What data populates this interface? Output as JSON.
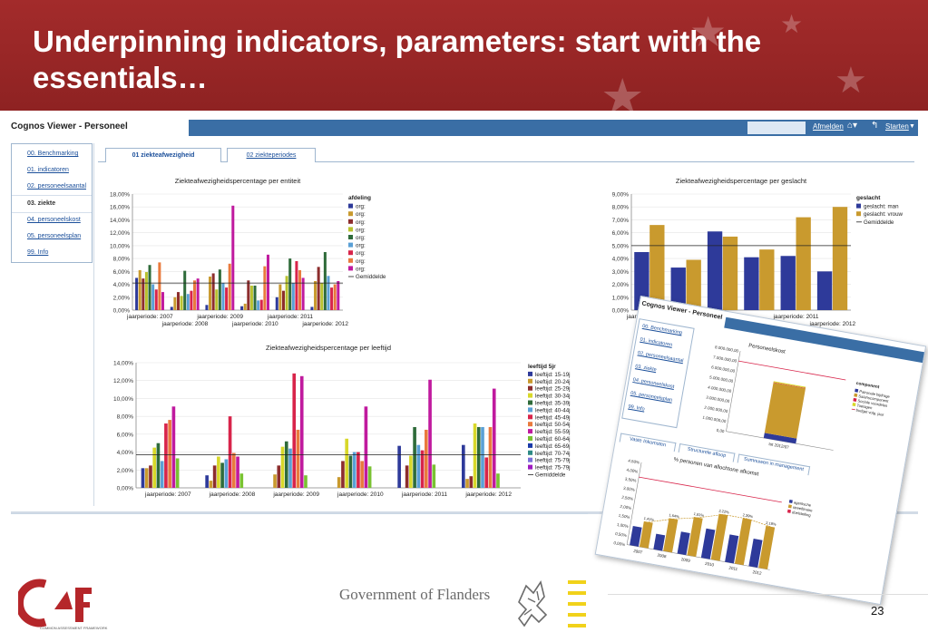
{
  "slide": {
    "title": "Underpinning indicators, parameters: start with the essentials…",
    "page_number": "23",
    "government_text": "Government of Flanders",
    "caf_logo_text": "caf",
    "caf_logo_subtext": "COMMON ASSESSMENT FRAMEWORK"
  },
  "viewer": {
    "title": "Cognos Viewer - Personeel",
    "toolbar": {
      "logout": "Afmelden",
      "start": "Starten",
      "home_icon": "home-icon",
      "back_icon": "back-icon"
    },
    "nav": [
      {
        "label": "00. Benchmarking",
        "active": false
      },
      {
        "label": "01. indicatoren",
        "active": false
      },
      {
        "label": "02. personeelsaantal",
        "active": false
      },
      {
        "label": "03. ziekte",
        "active": true
      },
      {
        "label": "04. personeelskost",
        "active": false
      },
      {
        "label": "05. personeelsplan",
        "active": false
      },
      {
        "label": "99. Info",
        "active": false
      }
    ],
    "tabs": [
      {
        "label": "01 ziekteafwezigheid",
        "active": true
      },
      {
        "label": "02 ziekteperiodes",
        "active": false
      }
    ]
  },
  "chart_data": [
    {
      "type": "bar",
      "title": "Ziekteafwezigheidspercentage per entiteit",
      "categories": [
        "jaarperiode: 2007",
        "jaarperiode: 2008",
        "jaarperiode: 2009",
        "jaarperiode: 2010",
        "jaarperiode: 2011",
        "jaarperiode: 2012"
      ],
      "ylim": [
        0,
        18
      ],
      "yticks": [
        "0,00%",
        "2,00%",
        "4,00%",
        "6,00%",
        "8,00%",
        "10,00%",
        "12,00%",
        "14,00%",
        "16,00%",
        "18,00%"
      ],
      "legend_title": "afdeling",
      "legend_placement": "right",
      "average": 4.2,
      "average_label": "Gemiddelde",
      "colors": [
        "#2e3a9a",
        "#c99a2e",
        "#8c2d2d",
        "#b8c22f",
        "#2f6b3a",
        "#5aa0d6",
        "#d8244a",
        "#e97a3d",
        "#c01a9e"
      ],
      "series": [
        {
          "name": "org:",
          "values": [
            5.0,
            0.5,
            0.8,
            0.6,
            2.0,
            0.5
          ]
        },
        {
          "name": "org:",
          "values": [
            6.2,
            2.0,
            5.2,
            1.0,
            4.0,
            4.5
          ]
        },
        {
          "name": "org:",
          "values": [
            4.9,
            2.8,
            5.7,
            4.6,
            3.0,
            6.7
          ]
        },
        {
          "name": "org:",
          "values": [
            5.9,
            2.2,
            3.2,
            3.8,
            5.3,
            4.2
          ]
        },
        {
          "name": "org:",
          "values": [
            7.0,
            6.1,
            6.3,
            3.8,
            8.0,
            9.0
          ]
        },
        {
          "name": "org:",
          "values": [
            4.0,
            2.5,
            4.2,
            1.5,
            4.2,
            5.3
          ]
        },
        {
          "name": "org:",
          "values": [
            3.2,
            3.0,
            3.5,
            1.6,
            7.6,
            3.5
          ]
        },
        {
          "name": "org:",
          "values": [
            7.4,
            4.6,
            7.2,
            6.8,
            6.2,
            4.0
          ]
        },
        {
          "name": "org:",
          "values": [
            2.8,
            4.9,
            16.2,
            8.6,
            5.0,
            4.5
          ]
        }
      ]
    },
    {
      "type": "bar",
      "title": "Ziekteafwezigheidspercentage per geslacht",
      "categories": [
        "jaarperiode: 2007",
        "jaarperiode: 2008",
        "jaarperiode: 2009",
        "jaarperiode: 2010",
        "jaarperiode: 2011",
        "jaarperiode: 2012"
      ],
      "ylim": [
        0,
        9
      ],
      "yticks": [
        "0,00%",
        "1,00%",
        "2,00%",
        "3,00%",
        "4,00%",
        "5,00%",
        "6,00%",
        "7,00%",
        "8,00%",
        "9,00%"
      ],
      "legend_title": "geslacht",
      "legend_placement": "right",
      "average": 5.0,
      "average_label": "Gemiddelde",
      "colors": [
        "#2e3a9a",
        "#c99a2e"
      ],
      "series": [
        {
          "name": "geslacht: man",
          "values": [
            4.5,
            3.3,
            6.1,
            4.1,
            4.2,
            3.0
          ]
        },
        {
          "name": "geslacht: vrouw",
          "values": [
            6.6,
            3.9,
            5.7,
            4.7,
            7.2,
            8.0
          ]
        }
      ]
    },
    {
      "type": "bar",
      "title": "Ziekteafwezigheidspercentage per leeftijd",
      "categories": [
        "jaarperiode: 2007",
        "jaarperiode: 2008",
        "jaarperiode: 2009",
        "jaarperiode: 2010",
        "jaarperiode: 2011",
        "jaarperiode: 2012"
      ],
      "ylim": [
        0,
        14
      ],
      "yticks": [
        "0,00%",
        "2,00%",
        "4,00%",
        "6,00%",
        "8,00%",
        "10,00%",
        "12,00%",
        "14,00%"
      ],
      "legend_title": "leeftijd 5jr",
      "legend_placement": "right",
      "average": 3.7,
      "average_label": "Gemiddelde",
      "colors": [
        "#2e3a9a",
        "#c99a2e",
        "#8c2d2d",
        "#d8d82a",
        "#2f6b3a",
        "#5aa0d6",
        "#d8244a",
        "#e97a3d",
        "#c01a9e",
        "#7ac232",
        "#1a3aa8",
        "#2e8a86",
        "#7a70d8",
        "#9e1ac0"
      ],
      "series": [
        {
          "name": "leeftijd: 15-19j",
          "values": [
            2.2,
            1.4,
            0,
            0,
            4.7,
            4.8
          ]
        },
        {
          "name": "leeftijd: 20-24j",
          "values": [
            2.2,
            0.8,
            1.5,
            1.2,
            0,
            1.0
          ]
        },
        {
          "name": "leeftijd: 25-29j",
          "values": [
            2.5,
            2.5,
            2.5,
            3.0,
            2.5,
            1.3
          ]
        },
        {
          "name": "leeftijd: 30-34j",
          "values": [
            4.5,
            3.5,
            4.6,
            5.5,
            3.6,
            7.2
          ]
        },
        {
          "name": "leeftijd: 35-39j",
          "values": [
            5.0,
            2.8,
            5.2,
            3.6,
            6.8,
            6.8
          ]
        },
        {
          "name": "leeftijd: 40-44j",
          "values": [
            3.0,
            3.2,
            4.4,
            4.0,
            4.8,
            6.8
          ]
        },
        {
          "name": "leeftijd: 45-49j",
          "values": [
            7.2,
            8.0,
            12.8,
            4.0,
            4.2,
            3.4
          ]
        },
        {
          "name": "leeftijd: 50-54j",
          "values": [
            7.6,
            3.9,
            6.5,
            3.0,
            6.5,
            6.8
          ]
        },
        {
          "name": "leeftijd: 55-59j",
          "values": [
            9.1,
            3.5,
            12.5,
            9.1,
            12.1,
            11.1
          ]
        },
        {
          "name": "leeftijd: 60-64j",
          "values": [
            3.3,
            1.6,
            1.4,
            2.4,
            2.6,
            1.6
          ]
        },
        {
          "name": "leeftijd: 65-69j",
          "values": [
            0,
            0,
            0,
            0,
            0,
            0
          ]
        },
        {
          "name": "leeftijd: 70-74j",
          "values": [
            0,
            0,
            0,
            0,
            0,
            0
          ]
        },
        {
          "name": "leeftijd: 75-79j",
          "values": [
            0,
            0,
            0,
            0,
            0,
            0
          ]
        },
        {
          "name": "leeftijd: 75-79j",
          "values": [
            0,
            0,
            0,
            0,
            0,
            0
          ]
        }
      ]
    },
    {
      "type": "bar",
      "title": "Personeelskost",
      "categories": [
        "tot 2012/07"
      ],
      "yticks": [
        "0,00",
        "1.000.000,00",
        "2.000.000,00",
        "3.000.000,00",
        "4.000.000,00",
        "5.000.000,00",
        "6.000.000,00",
        "7.000.000,00",
        "8.000.000,00"
      ],
      "ylim": [
        0,
        8000000
      ],
      "stacked": true,
      "legend_title": "component",
      "legend_placement": "right",
      "colors": [
        "#2e3a9a",
        "#c99a2e",
        "#d8244a",
        "#d8d82a"
      ],
      "series": [
        {
          "name": "Patronale bijdrage",
          "values": [
            500000
          ]
        },
        {
          "name": "Salariscomponent",
          "values": [
            5000000
          ]
        },
        {
          "name": "Sociale voordelen",
          "values": [
            50000
          ]
        },
        {
          "name": "Toelagen",
          "values": [
            100000
          ]
        }
      ],
      "budget_line": 7000000,
      "budget_label": "budget volg. jaar"
    },
    {
      "type": "bar",
      "title": "% personen van allochtone afkomst",
      "categories": [
        "2007",
        "2008",
        "2009",
        "2010",
        "2011",
        "2012"
      ],
      "ylim": [
        0,
        4.5
      ],
      "yticks": [
        "0,00%",
        "0,50%",
        "1,00%",
        "1,50%",
        "2,00%",
        "2,50%",
        "3,00%",
        "3,50%",
        "4,00%",
        "4,50%"
      ],
      "legend_placement": "right",
      "colors": [
        "#2e3a9a",
        "#c99a2e",
        "#d8244a"
      ],
      "series": [
        {
          "name": "agentsche",
          "values": [
            1.05,
            0.85,
            1.2,
            1.6,
            1.5,
            1.5
          ]
        },
        {
          "name": "streeftinaire",
          "values": [
            1.4,
            1.8,
            2.1,
            2.5,
            2.5,
            2.3
          ]
        },
        {
          "name": "doelstelling",
          "values": [
            3.7,
            3.7,
            3.7,
            3.7,
            3.7,
            3.7
          ]
        }
      ],
      "data_labels": [
        "1,41%",
        "1,64%",
        "1,81%",
        "2,22%",
        "2,39%",
        "2,19%"
      ]
    }
  ],
  "overlay": {
    "title": "Cognos Viewer - Personeel",
    "nav": [
      "00. Benchmarking",
      "01. indicatoren",
      "02. personeelsaantal",
      "03. ziekte",
      "04. personeelskost",
      "05. personeelsplan",
      "99. Info"
    ],
    "tabs": [
      "Vaste Inkomsten",
      "Structurele afloop",
      "Sumnuwen in management"
    ]
  }
}
